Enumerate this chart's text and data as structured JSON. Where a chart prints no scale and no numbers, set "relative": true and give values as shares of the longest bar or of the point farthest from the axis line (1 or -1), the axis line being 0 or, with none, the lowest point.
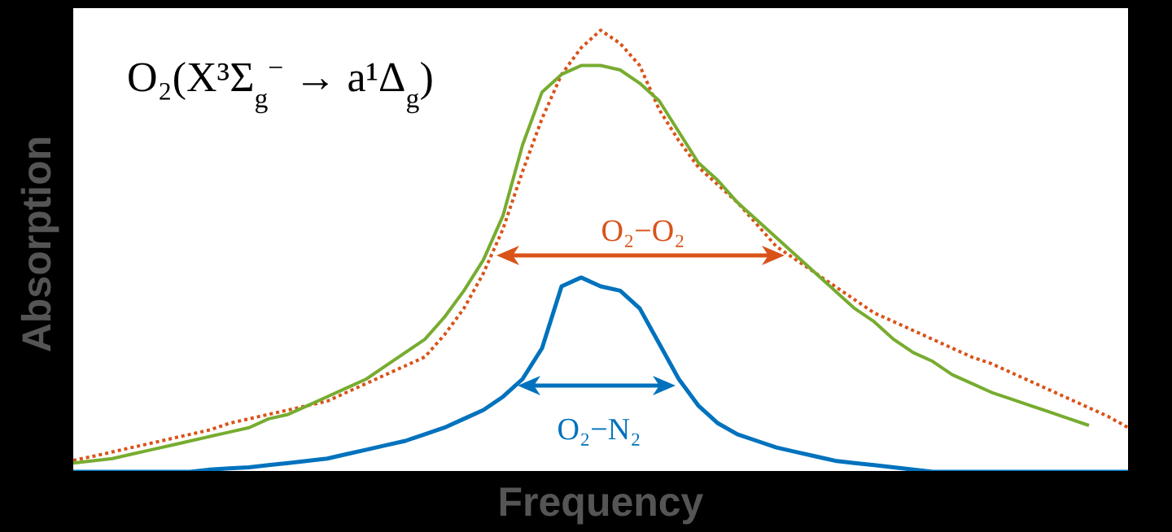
{
  "chart_data": {
    "type": "line",
    "relative": true,
    "xlabel": "Frequency",
    "ylabel": "Absorption",
    "marker": "none",
    "annotations": [
      "O₂(X³Σ$_{g}$$^{−}$ → a¹Δ$_{g}$)"
    ],
    "categories": [
      null,
      null,
      null,
      null,
      null,
      null,
      null,
      null,
      null,
      null,
      null,
      null,
      null,
      null,
      null,
      null,
      null,
      null,
      null,
      null,
      null,
      null,
      null,
      null,
      null,
      null,
      null,
      null,
      null,
      null,
      null,
      null,
      null,
      null,
      null,
      null,
      null,
      null,
      null,
      null,
      null,
      null,
      null,
      null,
      null,
      null,
      null,
      null,
      null,
      null,
      null,
      null,
      null,
      null,
      null
    ],
    "series": [
      {
        "name": "O₂−O₂",
        "color": "#d95319",
        "line_style": "dotted",
        "values": [
          0.026,
          0.035,
          0.045,
          0.055,
          0.065,
          0.075,
          0.085,
          0.095,
          0.11,
          0.12,
          0.13,
          0.14,
          0.15,
          0.16,
          0.18,
          0.2,
          0.22,
          0.24,
          0.26,
          0.31,
          0.37,
          0.45,
          0.55,
          0.68,
          0.8,
          0.9,
          0.96,
          1.0,
          0.97,
          0.92,
          0.82,
          0.75,
          0.69,
          0.65,
          0.61,
          0.56,
          0.51,
          0.48,
          0.45,
          0.42,
          0.39,
          0.36,
          0.34,
          0.32,
          0.3,
          0.28,
          0.26,
          0.245,
          0.225,
          0.205,
          0.185,
          0.165,
          0.145,
          0.125,
          0.1
        ]
      },
      {
        "color": "#77ac30",
        "line_style": "solid",
        "values": [
          0.02,
          0.025,
          0.03,
          0.04,
          0.05,
          0.06,
          0.07,
          0.08,
          0.09,
          0.1,
          0.12,
          0.13,
          0.15,
          0.17,
          0.19,
          0.21,
          0.24,
          0.27,
          0.3,
          0.35,
          0.41,
          0.48,
          0.58,
          0.74,
          0.86,
          0.9,
          0.92,
          0.92,
          0.91,
          0.88,
          0.84,
          0.77,
          0.7,
          0.66,
          0.61,
          0.57,
          0.53,
          0.49,
          0.45,
          0.41,
          0.37,
          0.34,
          0.3,
          0.27,
          0.25,
          0.22,
          0.2,
          0.18,
          0.165,
          0.15,
          0.135,
          0.12,
          0.105,
          null,
          null
        ]
      },
      {
        "name": "O₂−N₂",
        "color": "#0072bd",
        "line_style": "solid",
        "values": [
          0,
          0,
          0,
          0,
          0,
          0,
          0,
          0.005,
          0.008,
          0.01,
          0.015,
          0.02,
          0.025,
          0.03,
          0.04,
          0.05,
          0.06,
          0.07,
          0.085,
          0.1,
          0.12,
          0.14,
          0.17,
          0.21,
          0.28,
          0.42,
          0.44,
          0.42,
          0.41,
          0.37,
          0.29,
          0.21,
          0.15,
          0.11,
          0.085,
          0.07,
          0.055,
          0.045,
          0.035,
          0.025,
          0.02,
          0.015,
          0.01,
          0.005,
          0,
          0,
          0,
          0,
          0,
          0,
          0,
          0,
          0,
          0,
          0
        ]
      }
    ]
  }
}
